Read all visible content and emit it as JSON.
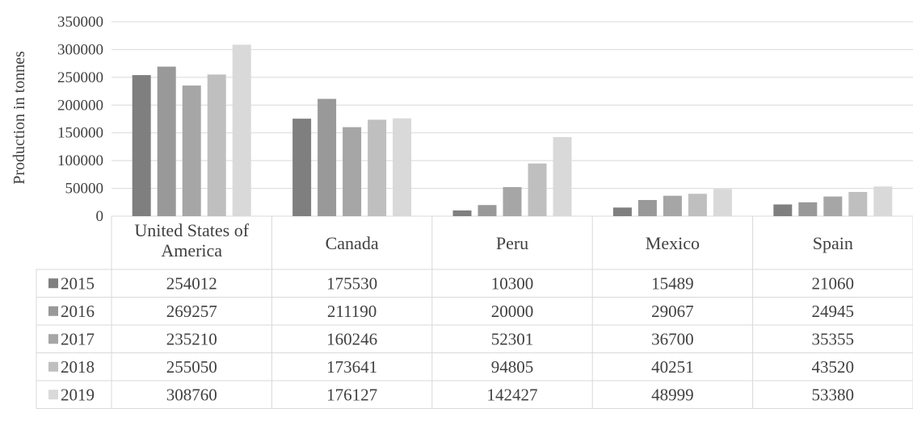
{
  "chart_data": {
    "type": "bar",
    "title": "",
    "ylabel": "Production in tonnes",
    "xlabel": "",
    "ylim": [
      0,
      350000
    ],
    "yticks": [
      0,
      50000,
      100000,
      150000,
      200000,
      250000,
      300000,
      350000
    ],
    "grid": "horizontal",
    "legend": "data-table",
    "categories": [
      "United States of America",
      "Canada",
      "Peru",
      "Mexico",
      "Spain"
    ],
    "series": [
      {
        "name": "2015",
        "color": "#7f7f7f",
        "values": [
          254012,
          175530,
          10300,
          15489,
          21060
        ]
      },
      {
        "name": "2016",
        "color": "#999999",
        "values": [
          269257,
          211190,
          20000,
          29067,
          24945
        ]
      },
      {
        "name": "2017",
        "color": "#a6a6a6",
        "values": [
          235210,
          160246,
          52301,
          36700,
          35355
        ]
      },
      {
        "name": "2018",
        "color": "#bfbfbf",
        "values": [
          255050,
          173641,
          94805,
          40251,
          43520
        ]
      },
      {
        "name": "2019",
        "color": "#d9d9d9",
        "values": [
          308760,
          176127,
          142427,
          48999,
          53380
        ]
      }
    ]
  }
}
